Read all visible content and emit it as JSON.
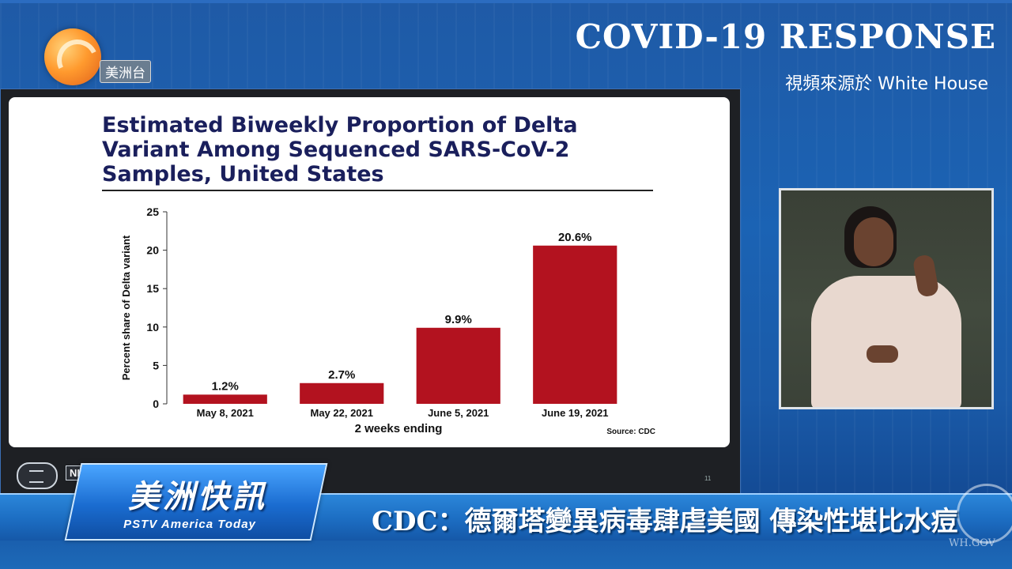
{
  "broadcast": {
    "logo_text": "美洲台",
    "event_title": "COVID-19 RESPONSE",
    "source_note": "視頻來源於 White House",
    "program_name": "美洲快訊",
    "program_subtitle": "PSTV America Today",
    "headline": "CDC：德爾塔變異病毒肆虐美國  傳染性堪比水痘",
    "watermark_text": "WH.GOV"
  },
  "slide": {
    "title_lines": [
      "Estimated Biweekly Proportion of Delta",
      "Variant Among Sequenced SARS-CoV-2",
      "Samples, United States"
    ],
    "footer_logo_1": "white-house-seal-icon",
    "footer_logo_2": "NIH",
    "page_number": "11"
  },
  "chart_data": {
    "type": "bar",
    "title": "Estimated Biweekly Proportion of Delta Variant Among Sequenced SARS-CoV-2 Samples, United States",
    "xlabel": "2 weeks ending",
    "ylabel": "Percent share of Delta variant",
    "categories": [
      "May 8, 2021",
      "May 22, 2021",
      "June 5, 2021",
      "June 19, 2021"
    ],
    "values": [
      1.2,
      2.7,
      9.9,
      20.6
    ],
    "value_labels": [
      "1.2%",
      "2.7%",
      "9.9%",
      "20.6%"
    ],
    "ylim": [
      0,
      25
    ],
    "yticks": [
      0,
      5,
      10,
      15,
      20,
      25
    ],
    "bar_color": "#b3121f",
    "source": "Source: CDC",
    "grid": false
  }
}
